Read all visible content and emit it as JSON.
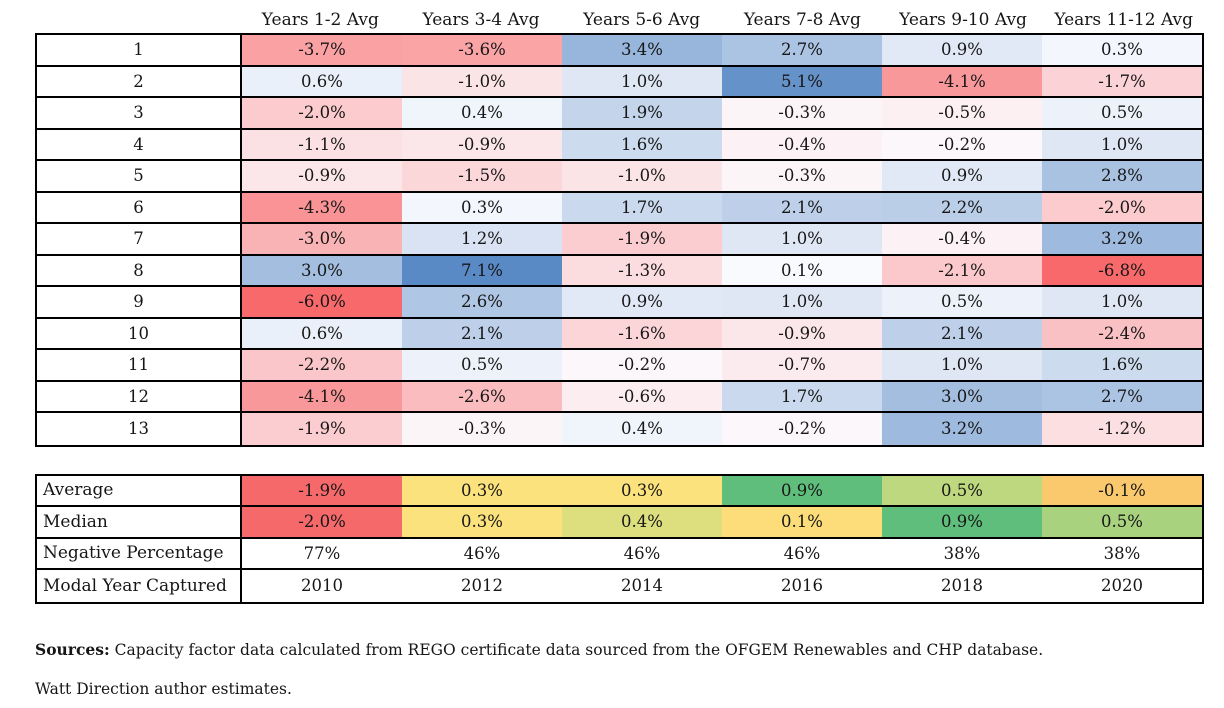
{
  "chart_data": {
    "type": "heatmap",
    "title": "",
    "columns": [
      "Years 1-2 Avg",
      "Years 3-4 Avg",
      "Years 5-6 Avg",
      "Years 7-8 Avg",
      "Years 9-10 Avg",
      "Years 11-12 Avg"
    ],
    "value_suffix": "%",
    "rows": [
      {
        "label": "1",
        "values": [
          -3.7,
          -3.6,
          3.4,
          2.7,
          0.9,
          0.3
        ]
      },
      {
        "label": "2",
        "values": [
          0.6,
          -1.0,
          1.0,
          5.1,
          -4.1,
          -1.7
        ]
      },
      {
        "label": "3",
        "values": [
          -2.0,
          0.4,
          1.9,
          -0.3,
          -0.5,
          0.5
        ]
      },
      {
        "label": "4",
        "values": [
          -1.1,
          -0.9,
          1.6,
          -0.4,
          -0.2,
          1.0
        ]
      },
      {
        "label": "5",
        "values": [
          -0.9,
          -1.5,
          -1.0,
          -0.3,
          0.9,
          2.8
        ]
      },
      {
        "label": "6",
        "values": [
          -4.3,
          0.3,
          1.7,
          2.1,
          2.2,
          -2.0
        ]
      },
      {
        "label": "7",
        "values": [
          -3.0,
          1.2,
          -1.9,
          1.0,
          -0.4,
          3.2
        ]
      },
      {
        "label": "8",
        "values": [
          3.0,
          7.1,
          -1.3,
          0.1,
          -2.1,
          -6.8
        ]
      },
      {
        "label": "9",
        "values": [
          -6.0,
          2.6,
          0.9,
          1.0,
          0.5,
          1.0
        ]
      },
      {
        "label": "10",
        "values": [
          0.6,
          2.1,
          -1.6,
          -0.9,
          2.1,
          -2.4
        ]
      },
      {
        "label": "11",
        "values": [
          -2.2,
          0.5,
          -0.2,
          -0.7,
          1.0,
          1.6
        ]
      },
      {
        "label": "12",
        "values": [
          -4.1,
          -2.6,
          -0.6,
          1.7,
          3.0,
          2.7
        ]
      },
      {
        "label": "13",
        "values": [
          -1.9,
          -0.3,
          0.4,
          -0.2,
          3.2,
          -1.2
        ]
      }
    ],
    "colorscale": {
      "negative_color": "#F8696B",
      "zero_color": "#FCFCFF",
      "positive_color": "#5A8AC6",
      "negative_full_at": -6.0,
      "positive_full_at": 5.5
    },
    "summary_rows": [
      {
        "label": "Average",
        "values": [
          "-1.9%",
          "0.3%",
          "0.3%",
          "0.9%",
          "0.5%",
          "-0.1%"
        ],
        "colors": [
          "#F5696B",
          "#FCE27C",
          "#FCE27C",
          "#5FBE7B",
          "#BED87F",
          "#FBC96D"
        ]
      },
      {
        "label": "Median",
        "values": [
          "-2.0%",
          "0.3%",
          "0.4%",
          "0.1%",
          "0.9%",
          "0.5%"
        ],
        "colors": [
          "#F5696B",
          "#FCE27C",
          "#DDDF7E",
          "#FCDD79",
          "#5FBE7B",
          "#A9D27F"
        ]
      },
      {
        "label": "Negative Percentage",
        "values": [
          "77%",
          "46%",
          "46%",
          "46%",
          "38%",
          "38%"
        ],
        "colors": null
      },
      {
        "label": "Modal Year Captured",
        "values": [
          "2010",
          "2012",
          "2014",
          "2016",
          "2018",
          "2020"
        ],
        "colors": null
      }
    ]
  },
  "footer": {
    "sources_label": "Sources:",
    "sources_text": " Capacity factor data calculated from REGO certificate data sourced from the OFGEM Renewables and CHP database.",
    "attribution": "Watt Direction author estimates."
  }
}
